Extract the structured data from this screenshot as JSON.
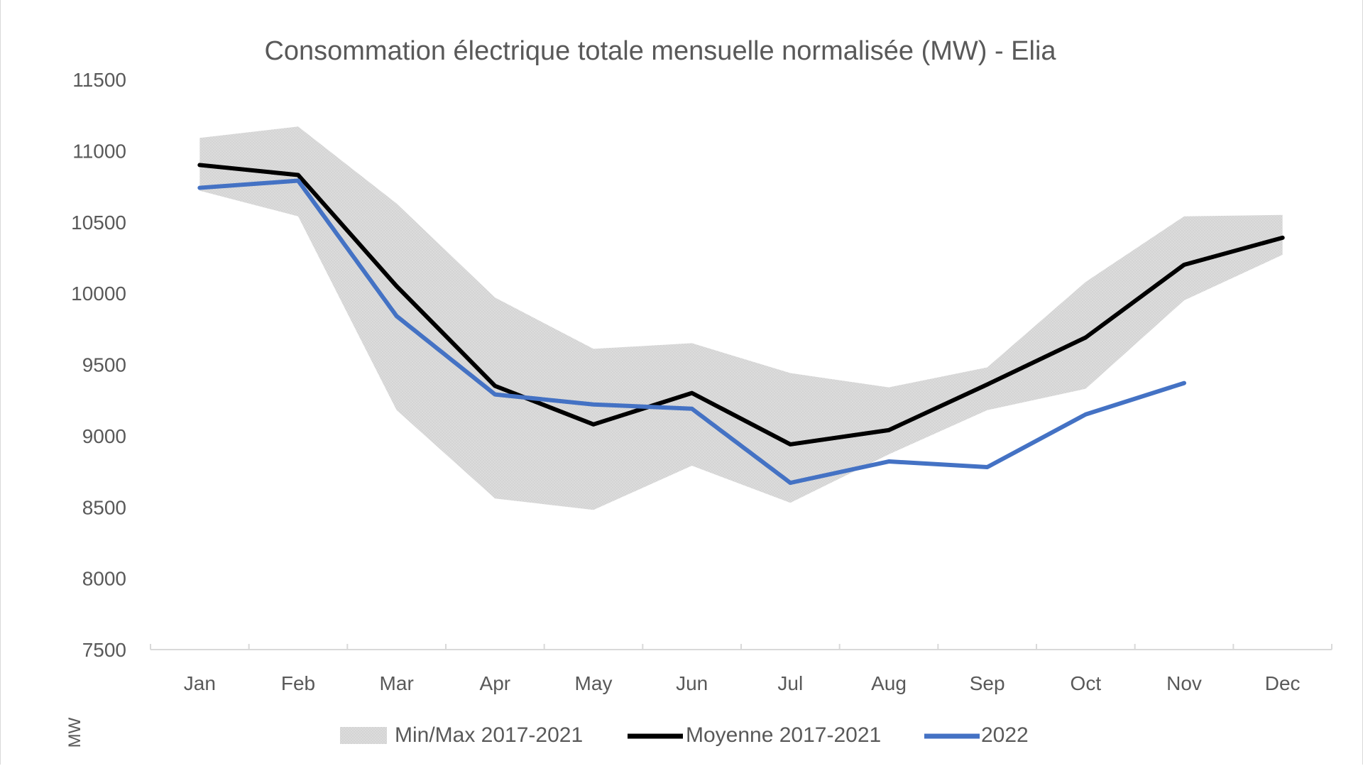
{
  "chart_data": {
    "type": "line",
    "title": "Consommation  électrique totale mensuelle normalisée (MW) - Elia",
    "xlabel": "",
    "ylabel": "MW",
    "categories": [
      "Jan",
      "Feb",
      "Mar",
      "Apr",
      "May",
      "Jun",
      "Jul",
      "Aug",
      "Sep",
      "Oct",
      "Nov",
      "Dec"
    ],
    "ylim": [
      7500,
      11500
    ],
    "yticks": [
      "11500",
      "11000",
      "10500",
      "10000",
      "9500",
      "9000",
      "8500",
      "8000",
      "7500"
    ],
    "grid": false,
    "legend_position": "bottom",
    "band": {
      "name": "Min/Max 2017-2021",
      "color": "#d9d9d9",
      "min": [
        10720,
        10540,
        9180,
        8560,
        8480,
        8790,
        8530,
        8870,
        9180,
        9330,
        9950,
        10270
      ],
      "max": [
        11090,
        11170,
        10630,
        9970,
        9610,
        9650,
        9440,
        9340,
        9480,
        10080,
        10540,
        10550
      ]
    },
    "series": [
      {
        "name": "Moyenne 2017-2021",
        "color": "#000000",
        "values": [
          10900,
          10830,
          10050,
          9350,
          9080,
          9300,
          8940,
          9040,
          9360,
          9690,
          10200,
          10390
        ]
      },
      {
        "name": "2022",
        "color": "#4472c4",
        "values": [
          10740,
          10790,
          9840,
          9290,
          9220,
          9190,
          8670,
          8820,
          8780,
          9150,
          9370,
          null
        ]
      }
    ]
  }
}
